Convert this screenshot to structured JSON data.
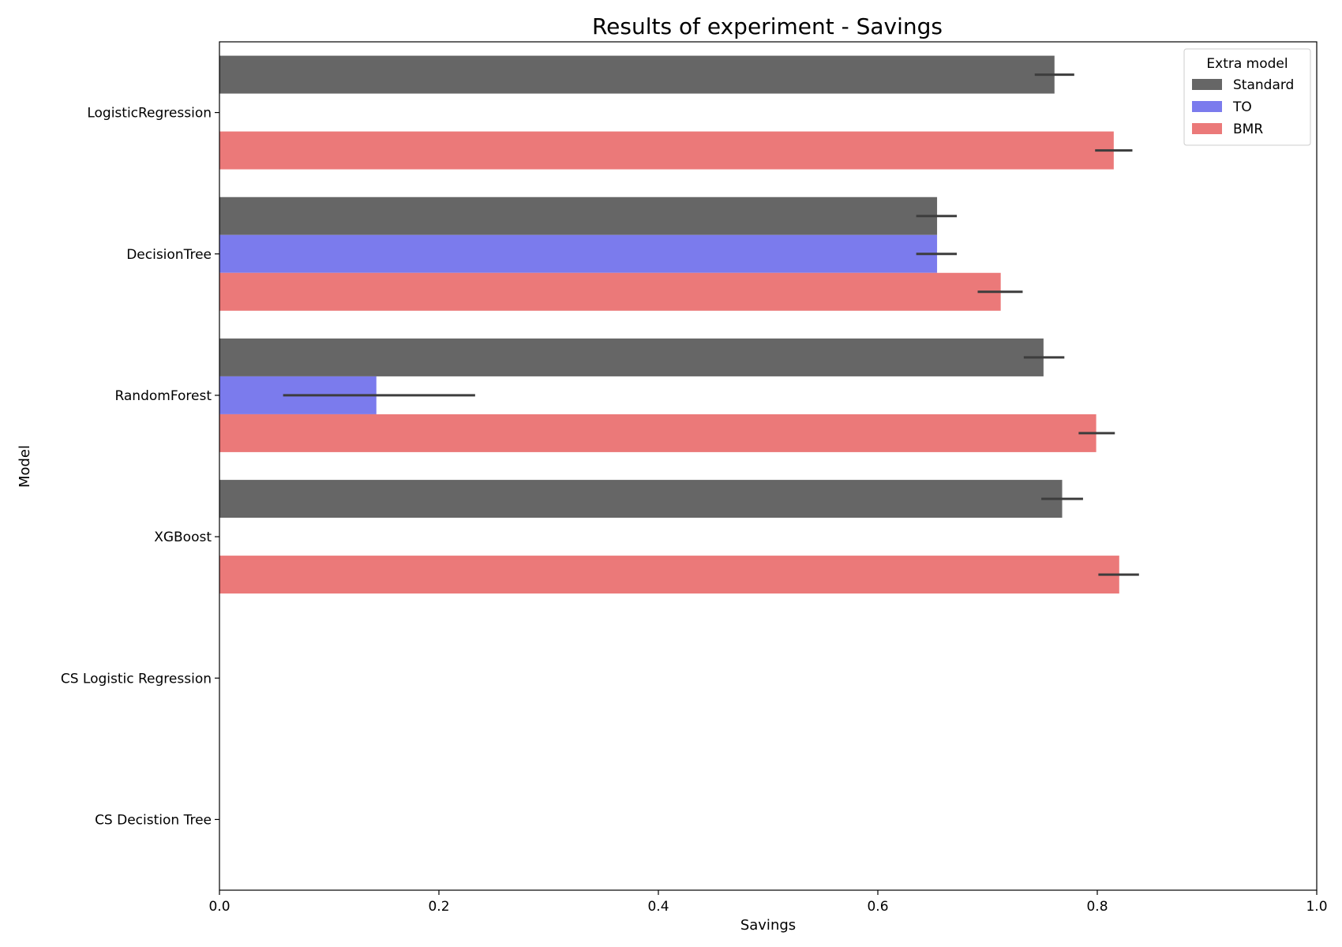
{
  "chart_data": {
    "type": "bar",
    "orientation": "horizontal",
    "title": "Results of experiment - Savings",
    "xlabel": "Savings",
    "ylabel": "Model",
    "xlim": [
      0.0,
      1.0
    ],
    "xticks": [
      "0.0",
      "0.2",
      "0.4",
      "0.6",
      "0.8",
      "1.0"
    ],
    "categories": [
      "LogisticRegression",
      "DecisionTree",
      "RandomForest",
      "XGBoost",
      "CS Logistic Regression",
      "CS Decistion Tree"
    ],
    "legend_title": "Extra model",
    "legend_position": "top-right",
    "grid": false,
    "series": [
      {
        "name": "Standard",
        "color": "#666666",
        "values": [
          0.761,
          0.654,
          0.751,
          0.768,
          null,
          null
        ],
        "err_low": [
          0.743,
          0.635,
          0.733,
          0.749,
          null,
          null
        ],
        "err_high": [
          0.779,
          0.672,
          0.77,
          0.787,
          null,
          null
        ]
      },
      {
        "name": "TO",
        "color": "#7b7bed",
        "values": [
          null,
          0.654,
          0.143,
          null,
          null,
          null
        ],
        "err_low": [
          null,
          0.635,
          0.058,
          null,
          null,
          null
        ],
        "err_high": [
          null,
          0.672,
          0.233,
          null,
          null,
          null
        ]
      },
      {
        "name": "BMR",
        "color": "#eb7979",
        "values": [
          0.815,
          0.712,
          0.799,
          0.82,
          null,
          null
        ],
        "err_low": [
          0.798,
          0.691,
          0.783,
          0.801,
          null,
          null
        ],
        "err_high": [
          0.832,
          0.732,
          0.816,
          0.838,
          null,
          null
        ]
      }
    ]
  }
}
